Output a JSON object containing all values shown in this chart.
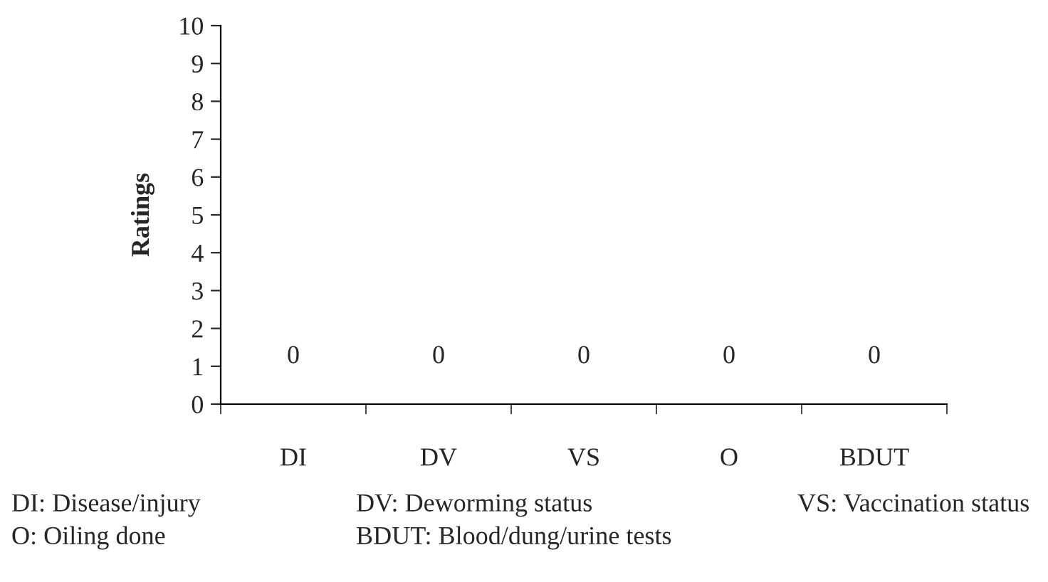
{
  "chart_data": {
    "type": "bar",
    "ylabel": "Ratings",
    "categories": [
      "DI",
      "DV",
      "VS",
      "O",
      "BDUT"
    ],
    "values": [
      0,
      0,
      0,
      0,
      0
    ],
    "data_labels": true,
    "ylim": [
      0,
      10
    ],
    "yticks": [
      0,
      1,
      2,
      3,
      4,
      5,
      6,
      7,
      8,
      9,
      10
    ],
    "grid": false,
    "annotations": [
      "DI: Disease/injury",
      "DV: Deworming status",
      "VS: Vaccination status",
      "O: Oiling done",
      "BDUT: Blood/dung/urine tests"
    ]
  }
}
